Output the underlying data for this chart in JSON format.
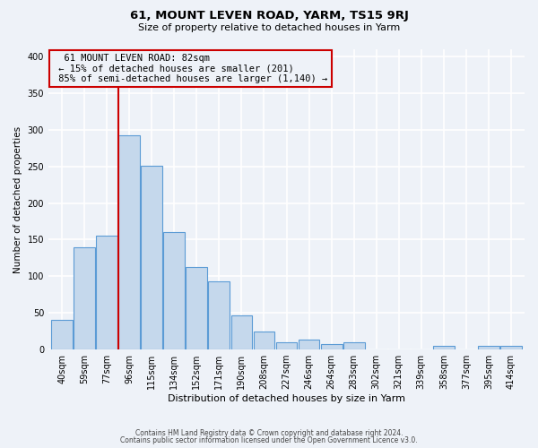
{
  "title": "61, MOUNT LEVEN ROAD, YARM, TS15 9RJ",
  "subtitle": "Size of property relative to detached houses in Yarm",
  "xlabel": "Distribution of detached houses by size in Yarm",
  "ylabel": "Number of detached properties",
  "footer_line1": "Contains HM Land Registry data © Crown copyright and database right 2024.",
  "footer_line2": "Contains public sector information licensed under the Open Government Licence v3.0.",
  "annotation_title": "61 MOUNT LEVEN ROAD: 82sqm",
  "annotation_line1": "← 15% of detached houses are smaller (201)",
  "annotation_line2": "85% of semi-detached houses are larger (1,140) →",
  "bar_labels": [
    "40sqm",
    "59sqm",
    "77sqm",
    "96sqm",
    "115sqm",
    "134sqm",
    "152sqm",
    "171sqm",
    "190sqm",
    "208sqm",
    "227sqm",
    "246sqm",
    "264sqm",
    "283sqm",
    "302sqm",
    "321sqm",
    "339sqm",
    "358sqm",
    "377sqm",
    "395sqm",
    "414sqm"
  ],
  "bar_values": [
    40,
    140,
    155,
    293,
    251,
    160,
    113,
    93,
    46,
    25,
    10,
    13,
    8,
    10,
    0,
    0,
    0,
    5,
    0,
    5,
    5
  ],
  "ylim": [
    0,
    410
  ],
  "yticks": [
    0,
    50,
    100,
    150,
    200,
    250,
    300,
    350,
    400
  ],
  "bar_color": "#c5d8ec",
  "bar_edge_color": "#5b9bd5",
  "vline_color": "#cc0000",
  "annotation_box_edge": "#cc0000",
  "bg_color": "#eef2f8",
  "grid_color": "#ffffff"
}
